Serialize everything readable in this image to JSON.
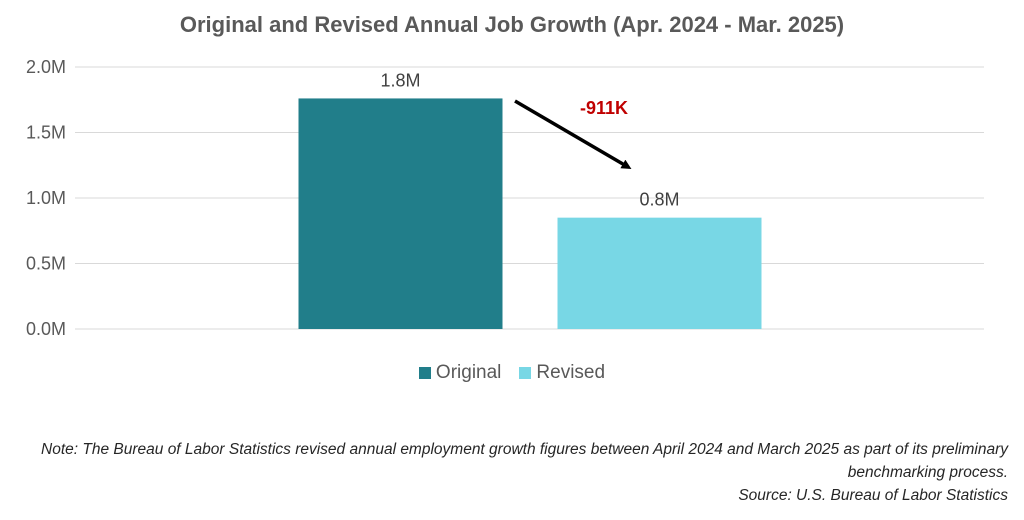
{
  "title": "Original and Revised Annual Job Growth (Apr. 2024 - Mar. 2025)",
  "colors": {
    "original": "#217e8a",
    "revised": "#78d7e5",
    "annotation": "#c00000",
    "arrow": "#000000",
    "grid": "#d9d9d9"
  },
  "chart_data": {
    "type": "bar",
    "categories": [
      ""
    ],
    "series": [
      {
        "name": "Original",
        "values": [
          1.76
        ],
        "label": "1.8M"
      },
      {
        "name": "Revised",
        "values": [
          0.85
        ],
        "label": "0.8M"
      }
    ],
    "ylim": [
      0,
      2.0
    ],
    "yticks": [
      {
        "value": 0.0,
        "label": "0.0M"
      },
      {
        "value": 0.5,
        "label": "0.5M"
      },
      {
        "value": 1.0,
        "label": "1.0M"
      },
      {
        "value": 1.5,
        "label": "1.5M"
      },
      {
        "value": 2.0,
        "label": "2.0M"
      }
    ],
    "grid": true,
    "legend": "bottom",
    "annotation": "-911K"
  },
  "legend": {
    "original": "Original",
    "revised": "Revised"
  },
  "note": {
    "line1": "Note: The Bureau of Labor Statistics revised annual employment growth figures between April 2024 and March 2025 as part of its preliminary",
    "line2": "benchmarking process.",
    "source": "Source: U.S. Bureau of Labor Statistics"
  }
}
